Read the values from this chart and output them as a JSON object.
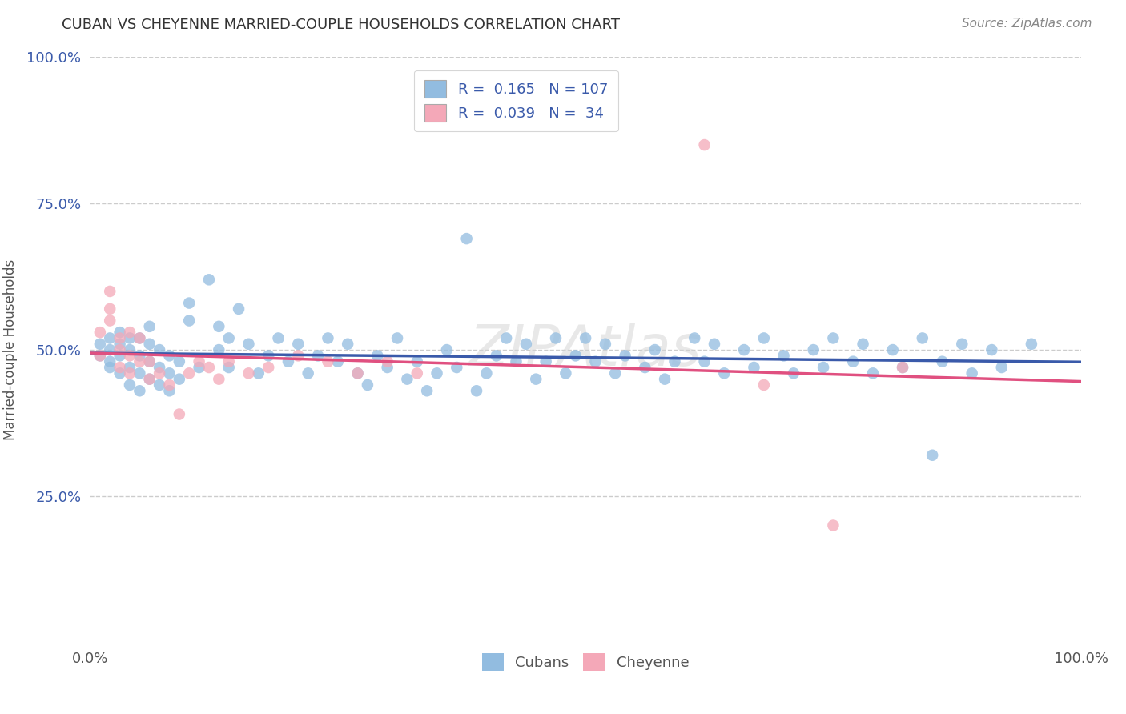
{
  "title": "CUBAN VS CHEYENNE MARRIED-COUPLE HOUSEHOLDS CORRELATION CHART",
  "source_text": "Source: ZipAtlas.com",
  "ylabel": "Married-couple Households",
  "xlim": [
    0,
    1
  ],
  "ylim": [
    0,
    1
  ],
  "x_tick_labels": [
    "0.0%",
    "100.0%"
  ],
  "y_tick_labels": [
    "25.0%",
    "50.0%",
    "75.0%",
    "100.0%"
  ],
  "y_ticks": [
    0.25,
    0.5,
    0.75,
    1.0
  ],
  "blue_color": "#92bce0",
  "pink_color": "#f4a8b8",
  "line_blue": "#3a5aaa",
  "line_pink": "#e05080",
  "watermark": "ZIPAtlas",
  "cubans_scatter_x": [
    0.01,
    0.01,
    0.02,
    0.02,
    0.02,
    0.02,
    0.03,
    0.03,
    0.03,
    0.03,
    0.04,
    0.04,
    0.04,
    0.04,
    0.05,
    0.05,
    0.05,
    0.05,
    0.06,
    0.06,
    0.06,
    0.06,
    0.07,
    0.07,
    0.07,
    0.08,
    0.08,
    0.08,
    0.09,
    0.09,
    0.1,
    0.1,
    0.11,
    0.12,
    0.13,
    0.13,
    0.14,
    0.14,
    0.15,
    0.16,
    0.17,
    0.18,
    0.19,
    0.2,
    0.21,
    0.22,
    0.23,
    0.24,
    0.25,
    0.26,
    0.27,
    0.28,
    0.29,
    0.3,
    0.31,
    0.32,
    0.33,
    0.34,
    0.35,
    0.36,
    0.37,
    0.38,
    0.39,
    0.4,
    0.41,
    0.42,
    0.43,
    0.44,
    0.45,
    0.46,
    0.47,
    0.48,
    0.49,
    0.5,
    0.51,
    0.52,
    0.53,
    0.54,
    0.56,
    0.57,
    0.58,
    0.59,
    0.61,
    0.62,
    0.63,
    0.64,
    0.66,
    0.67,
    0.68,
    0.7,
    0.71,
    0.73,
    0.74,
    0.75,
    0.77,
    0.78,
    0.79,
    0.81,
    0.82,
    0.84,
    0.85,
    0.86,
    0.88,
    0.89,
    0.91,
    0.92,
    0.95
  ],
  "cubans_scatter_y": [
    0.49,
    0.51,
    0.47,
    0.5,
    0.52,
    0.48,
    0.46,
    0.49,
    0.51,
    0.53,
    0.44,
    0.47,
    0.5,
    0.52,
    0.43,
    0.46,
    0.49,
    0.52,
    0.45,
    0.48,
    0.51,
    0.54,
    0.44,
    0.47,
    0.5,
    0.43,
    0.46,
    0.49,
    0.45,
    0.48,
    0.55,
    0.58,
    0.47,
    0.62,
    0.5,
    0.54,
    0.47,
    0.52,
    0.57,
    0.51,
    0.46,
    0.49,
    0.52,
    0.48,
    0.51,
    0.46,
    0.49,
    0.52,
    0.48,
    0.51,
    0.46,
    0.44,
    0.49,
    0.47,
    0.52,
    0.45,
    0.48,
    0.43,
    0.46,
    0.5,
    0.47,
    0.69,
    0.43,
    0.46,
    0.49,
    0.52,
    0.48,
    0.51,
    0.45,
    0.48,
    0.52,
    0.46,
    0.49,
    0.52,
    0.48,
    0.51,
    0.46,
    0.49,
    0.47,
    0.5,
    0.45,
    0.48,
    0.52,
    0.48,
    0.51,
    0.46,
    0.5,
    0.47,
    0.52,
    0.49,
    0.46,
    0.5,
    0.47,
    0.52,
    0.48,
    0.51,
    0.46,
    0.5,
    0.47,
    0.52,
    0.32,
    0.48,
    0.51,
    0.46,
    0.5,
    0.47,
    0.51
  ],
  "cheyenne_scatter_x": [
    0.01,
    0.01,
    0.02,
    0.02,
    0.02,
    0.03,
    0.03,
    0.03,
    0.04,
    0.04,
    0.04,
    0.05,
    0.05,
    0.06,
    0.06,
    0.07,
    0.08,
    0.09,
    0.1,
    0.11,
    0.12,
    0.13,
    0.14,
    0.16,
    0.18,
    0.21,
    0.24,
    0.27,
    0.3,
    0.33,
    0.62,
    0.68,
    0.75,
    0.82
  ],
  "cheyenne_scatter_y": [
    0.49,
    0.53,
    0.57,
    0.6,
    0.55,
    0.5,
    0.52,
    0.47,
    0.46,
    0.49,
    0.53,
    0.48,
    0.52,
    0.45,
    0.48,
    0.46,
    0.44,
    0.39,
    0.46,
    0.48,
    0.47,
    0.45,
    0.48,
    0.46,
    0.47,
    0.49,
    0.48,
    0.46,
    0.48,
    0.46,
    0.85,
    0.44,
    0.2,
    0.47
  ]
}
